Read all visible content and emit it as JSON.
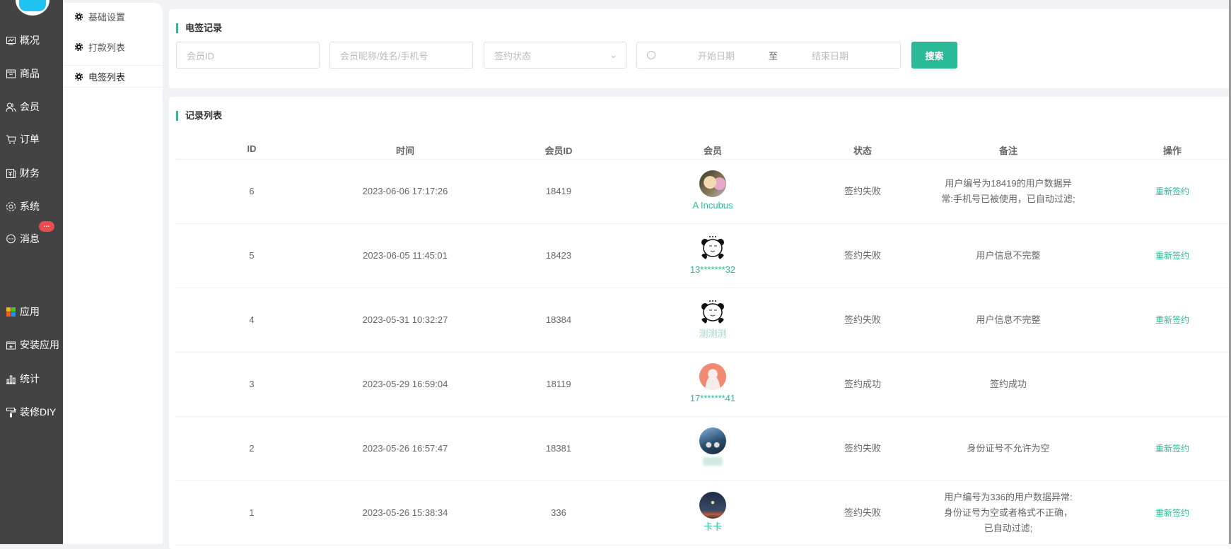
{
  "sidebar": {
    "items": [
      {
        "label": "概况",
        "icon": "chart-monitor-icon"
      },
      {
        "label": "商品",
        "icon": "shop-box-icon"
      },
      {
        "label": "会员",
        "icon": "users-icon"
      },
      {
        "label": "订单",
        "icon": "cart-icon"
      },
      {
        "label": "财务",
        "icon": "finance-icon"
      },
      {
        "label": "系统",
        "icon": "gear-icon"
      },
      {
        "label": "消息",
        "icon": "chat-icon",
        "badge": "..."
      },
      {
        "label": "应用",
        "icon": "apps-grid-icon"
      },
      {
        "label": "安装应用",
        "icon": "install-icon"
      },
      {
        "label": "统计",
        "icon": "bar-chart-icon"
      },
      {
        "label": "装修DIY",
        "icon": "paint-roller-icon"
      }
    ]
  },
  "submenu": {
    "items": [
      {
        "label": "基础设置"
      },
      {
        "label": "打款列表"
      },
      {
        "label": "电签列表",
        "active": true
      }
    ]
  },
  "filter": {
    "title": "电签记录",
    "member_id_placeholder": "会员ID",
    "member_name_placeholder": "会员昵称/姓名/手机号",
    "status_placeholder": "签约状态",
    "start_placeholder": "开始日期",
    "range_sep": "至",
    "end_placeholder": "结束日期",
    "search_label": "搜索"
  },
  "list": {
    "title": "记录列表",
    "columns": [
      "ID",
      "时间",
      "会员ID",
      "会员",
      "状态",
      "备注",
      "操作"
    ],
    "rows": [
      {
        "id": "6",
        "time": "2023-06-06 17:17:26",
        "member_id": "18419",
        "member": "A Incubus",
        "status": "签约失败",
        "remark": "用户编号为18419的用户数据异常:手机号已被使用，已自动过滤;",
        "action": "重新签约"
      },
      {
        "id": "5",
        "time": "2023-06-05 11:45:01",
        "member_id": "18423",
        "member": "13*******32",
        "status": "签约失败",
        "remark": "用户信息不完整",
        "action": "重新签约"
      },
      {
        "id": "4",
        "time": "2023-05-31 10:32:27",
        "member_id": "18384",
        "member": "测测测",
        "status": "签约失败",
        "remark": "用户信息不完整",
        "action": "重新签约"
      },
      {
        "id": "3",
        "time": "2023-05-29 16:59:04",
        "member_id": "18119",
        "member": "17*******41",
        "status": "签约成功",
        "remark": "签约成功",
        "action": ""
      },
      {
        "id": "2",
        "time": "2023-05-26 16:57:47",
        "member_id": "18381",
        "member": "",
        "status": "签约失败",
        "remark": "身份证号不允许为空",
        "action": "重新签约"
      },
      {
        "id": "1",
        "time": "2023-05-26 15:38:34",
        "member_id": "336",
        "member": "卡卡",
        "status": "签约失败",
        "remark": "用户编号为336的用户数据异常:身份证号为空或者格式不正确，已自动过滤;",
        "action": "重新签约"
      }
    ]
  },
  "colors": {
    "accent": "#2bba98",
    "sidebar": "#434343",
    "badge": "#e84c4c"
  }
}
